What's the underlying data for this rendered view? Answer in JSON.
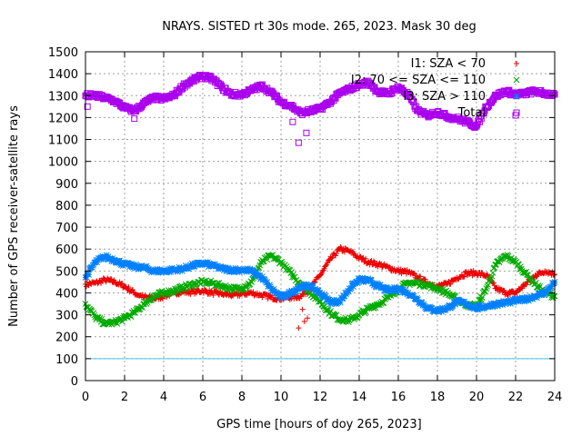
{
  "chart_data": {
    "type": "scatter",
    "title": "NRAYS. SISTED rt 30s mode. 265, 2023. Mask 30 deg",
    "xlabel": "GPS time [hours of doy 265, 2023]",
    "ylabel": "Number of GPS receiver-satellite rays",
    "xlim": [
      0,
      24
    ],
    "ylim": [
      0,
      1500
    ],
    "xticks": [
      0,
      2,
      4,
      6,
      8,
      10,
      12,
      14,
      16,
      18,
      20,
      22,
      24
    ],
    "yticks": [
      0,
      100,
      200,
      300,
      400,
      500,
      600,
      700,
      800,
      900,
      1000,
      1100,
      1200,
      1300,
      1400,
      1500
    ],
    "grid": true,
    "legend_position": "top-right",
    "reference_line": {
      "y": 100,
      "color": "#40c8e0"
    },
    "series": [
      {
        "name": "I1: SZA < 70",
        "marker": "+",
        "color": "#ee0000",
        "x": [
          0,
          0.5,
          1,
          1.5,
          2,
          2.5,
          3,
          3.5,
          4,
          4.5,
          5,
          5.5,
          6,
          6.5,
          7,
          7.5,
          8,
          8.5,
          9,
          9.5,
          10,
          10.5,
          11,
          11.5,
          12,
          12.5,
          13,
          13.5,
          14,
          14.5,
          15,
          15.5,
          16,
          16.5,
          17,
          17.5,
          18,
          18.5,
          19,
          19.5,
          20,
          20.5,
          21,
          21.5,
          22,
          22.5,
          23,
          23.5,
          24
        ],
        "values": [
          440,
          445,
          460,
          450,
          430,
          400,
          380,
          375,
          385,
          400,
          405,
          405,
          410,
          400,
          395,
          390,
          395,
          400,
          390,
          380,
          375,
          380,
          385,
          420,
          480,
          550,
          600,
          590,
          560,
          540,
          530,
          515,
          500,
          495,
          470,
          445,
          430,
          440,
          470,
          490,
          490,
          480,
          420,
          400,
          400,
          440,
          480,
          500,
          485
        ]
      },
      {
        "name": "I2: 70 <= SZA <= 110",
        "marker": "x",
        "color": "#00aa00",
        "x": [
          0,
          0.5,
          1,
          1.5,
          2,
          2.5,
          3,
          3.5,
          4,
          4.5,
          5,
          5.5,
          6,
          6.5,
          7,
          7.5,
          8,
          8.5,
          9,
          9.5,
          10,
          10.5,
          11,
          11.5,
          12,
          12.5,
          13,
          13.5,
          14,
          14.5,
          15,
          15.5,
          16,
          16.5,
          17,
          17.5,
          18,
          18.5,
          19,
          19.5,
          20,
          20.5,
          21,
          21.5,
          22,
          22.5,
          23,
          23.5,
          24
        ],
        "values": [
          350,
          290,
          260,
          265,
          285,
          310,
          350,
          385,
          400,
          410,
          425,
          440,
          450,
          445,
          430,
          420,
          420,
          450,
          540,
          570,
          540,
          490,
          440,
          400,
          360,
          310,
          280,
          275,
          300,
          330,
          350,
          380,
          420,
          445,
          445,
          435,
          420,
          400,
          370,
          345,
          340,
          420,
          530,
          570,
          540,
          490,
          440,
          400,
          385
        ]
      },
      {
        "name": "I3: SZA > 110",
        "marker": "*",
        "color": "#0080ff",
        "x": [
          0,
          0.5,
          1,
          1.5,
          2,
          2.5,
          3,
          3.5,
          4,
          4.5,
          5,
          5.5,
          6,
          6.5,
          7,
          7.5,
          8,
          8.5,
          9,
          9.5,
          10,
          10.5,
          11,
          11.5,
          12,
          12.5,
          13,
          13.5,
          14,
          14.5,
          15,
          15.5,
          16,
          16.5,
          17,
          17.5,
          18,
          18.5,
          19,
          19.5,
          20,
          20.5,
          21,
          21.5,
          22,
          22.5,
          23,
          23.5,
          24
        ],
        "values": [
          470,
          540,
          565,
          550,
          530,
          520,
          515,
          500,
          500,
          505,
          510,
          525,
          535,
          525,
          510,
          505,
          505,
          500,
          470,
          420,
          380,
          400,
          430,
          430,
          400,
          360,
          360,
          420,
          460,
          455,
          430,
          410,
          420,
          400,
          370,
          330,
          320,
          330,
          360,
          350,
          330,
          340,
          350,
          355,
          365,
          370,
          385,
          400,
          450
        ]
      },
      {
        "name": "Total",
        "marker": "square",
        "color": "#aa00ee",
        "x": [
          0,
          0.5,
          1,
          1.5,
          2,
          2.5,
          3,
          3.5,
          4,
          4.5,
          5,
          5.5,
          6,
          6.5,
          7,
          7.5,
          8,
          8.5,
          9,
          9.5,
          10,
          10.5,
          11,
          11.5,
          12,
          12.5,
          13,
          13.5,
          14,
          14.5,
          15,
          15.5,
          16,
          16.5,
          17,
          17.5,
          18,
          18.5,
          19,
          19.5,
          20,
          20.5,
          21,
          21.5,
          22,
          22.5,
          23,
          23.5,
          24
        ],
        "values": [
          1300,
          1300,
          1290,
          1275,
          1245,
          1230,
          1265,
          1290,
          1285,
          1300,
          1345,
          1370,
          1390,
          1375,
          1335,
          1305,
          1305,
          1325,
          1345,
          1315,
          1270,
          1255,
          1220,
          1230,
          1240,
          1270,
          1310,
          1330,
          1350,
          1360,
          1315,
          1310,
          1340,
          1305,
          1230,
          1210,
          1225,
          1205,
          1195,
          1180,
          1160,
          1250,
          1300,
          1320,
          1305,
          1310,
          1320,
          1310,
          1305
        ]
      }
    ],
    "outliers": [
      {
        "series": "I1: SZA < 70",
        "x": 10.9,
        "y": 240
      },
      {
        "series": "I1: SZA < 70",
        "x": 11.2,
        "y": 270
      },
      {
        "series": "I1: SZA < 70",
        "x": 11.35,
        "y": 285
      },
      {
        "series": "I1: SZA < 70",
        "x": 11.1,
        "y": 325
      },
      {
        "series": "Total",
        "x": 10.9,
        "y": 1085
      },
      {
        "series": "Total",
        "x": 11.3,
        "y": 1130
      },
      {
        "series": "Total",
        "x": 10.6,
        "y": 1180
      },
      {
        "series": "Total",
        "x": 22.0,
        "y": 1210
      },
      {
        "series": "Total",
        "x": 2.5,
        "y": 1195
      },
      {
        "series": "Total",
        "x": 0.1,
        "y": 1250
      }
    ]
  }
}
